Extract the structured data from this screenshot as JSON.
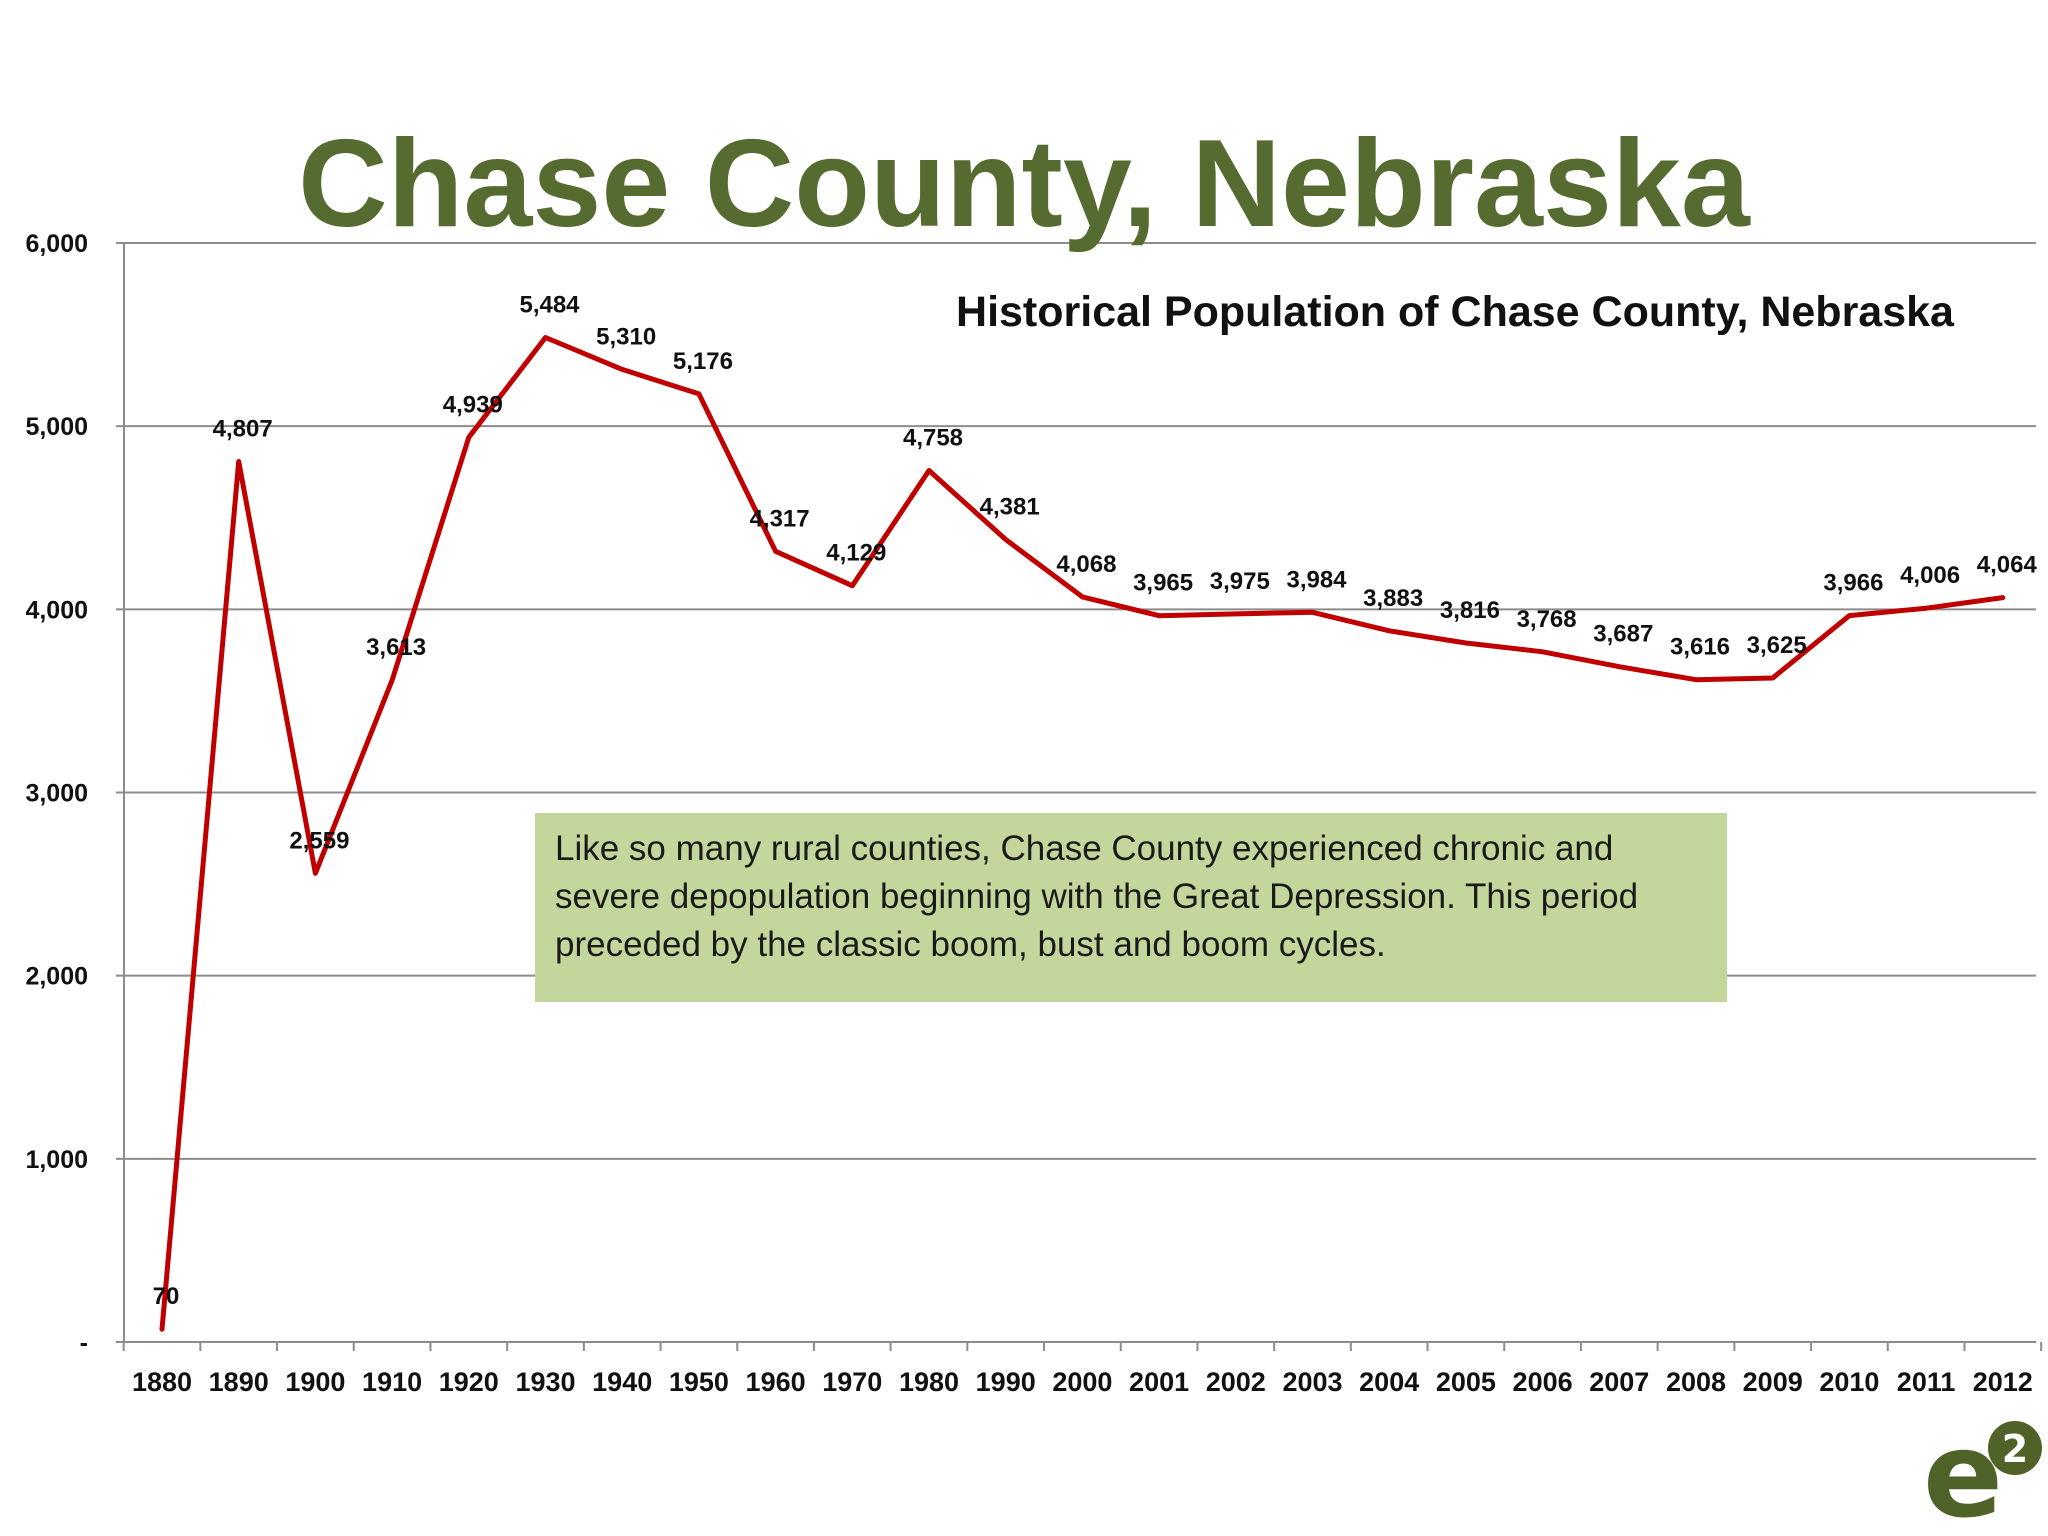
{
  "slide": {
    "title": "Chase County, Nebraska",
    "callout_text": "Like so many rural counties, Chase County experienced chronic and severe depopulation beginning with the Great Depression.  This period preceded by the classic boom, bust and boom cycles.",
    "logo_letter": "e",
    "logo_superscript": "2"
  },
  "chart_data": {
    "type": "line",
    "title": "Historical Population of Chase County, Nebraska",
    "xlabel": "",
    "ylabel": "",
    "categories": [
      "1880",
      "1890",
      "1900",
      "1910",
      "1920",
      "1930",
      "1940",
      "1950",
      "1960",
      "1970",
      "1980",
      "1990",
      "2000",
      "2001",
      "2002",
      "2003",
      "2004",
      "2005",
      "2006",
      "2007",
      "2008",
      "2009",
      "2010",
      "2011",
      "2012"
    ],
    "series": [
      {
        "values": [
          70,
          4807,
          2559,
          3613,
          4939,
          5484,
          5310,
          5176,
          4317,
          4129,
          4758,
          4381,
          4068,
          3965,
          3975,
          3984,
          3883,
          3816,
          3768,
          3687,
          3616,
          3625,
          3966,
          4006,
          4064
        ],
        "data_labels": [
          "70",
          "4,807",
          "2,559",
          "3,613",
          "4,939",
          "5,484",
          "5,310",
          "5,176",
          "4,317",
          "4,129",
          "4,758",
          "4,381",
          "4,068",
          "3,965",
          "3,975",
          "3,984",
          "3,883",
          "3,816",
          "3,768",
          "3,687",
          "3,616",
          "3,625",
          "3,966",
          "4,006",
          "4,064"
        ],
        "color": "#c00000"
      }
    ],
    "ylim": [
      0,
      6000
    ],
    "yticks": [
      0,
      1000,
      2000,
      3000,
      4000,
      5000,
      6000
    ],
    "ytick_labels": [
      "-",
      "1,000",
      "2,000",
      "3,000",
      "4,000",
      "5,000",
      "6,000"
    ],
    "grid": true,
    "legend": "none"
  }
}
